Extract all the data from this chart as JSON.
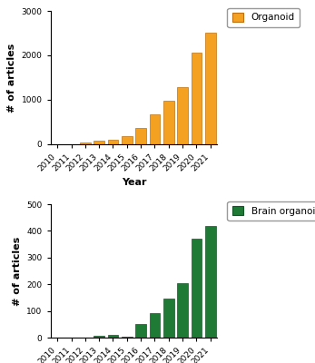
{
  "years": [
    "2010",
    "2011",
    "2012",
    "2013",
    "2014",
    "2015",
    "2016",
    "2017",
    "2018",
    "2019",
    "2020",
    "2021"
  ],
  "organoid_values": [
    3,
    8,
    30,
    90,
    110,
    190,
    370,
    670,
    970,
    1280,
    2060,
    2520
  ],
  "brain_organoid_values": [
    0,
    0,
    0,
    8,
    10,
    4,
    50,
    93,
    148,
    205,
    370,
    418
  ],
  "organoid_color": "#F4A020",
  "brain_organoid_color": "#1E7A35",
  "organoid_label": "Organoid",
  "brain_organoid_label": "Brain organoid",
  "ylabel": "# of articles",
  "xlabel": "Year",
  "ylim1": [
    0,
    3000
  ],
  "ylim2": [
    0,
    500
  ],
  "yticks1": [
    0,
    1000,
    2000,
    3000
  ],
  "yticks2": [
    0,
    100,
    200,
    300,
    400,
    500
  ],
  "background_color": "#ffffff",
  "tick_fontsize": 6.5,
  "label_fontsize": 8,
  "legend_fontsize": 7.5
}
